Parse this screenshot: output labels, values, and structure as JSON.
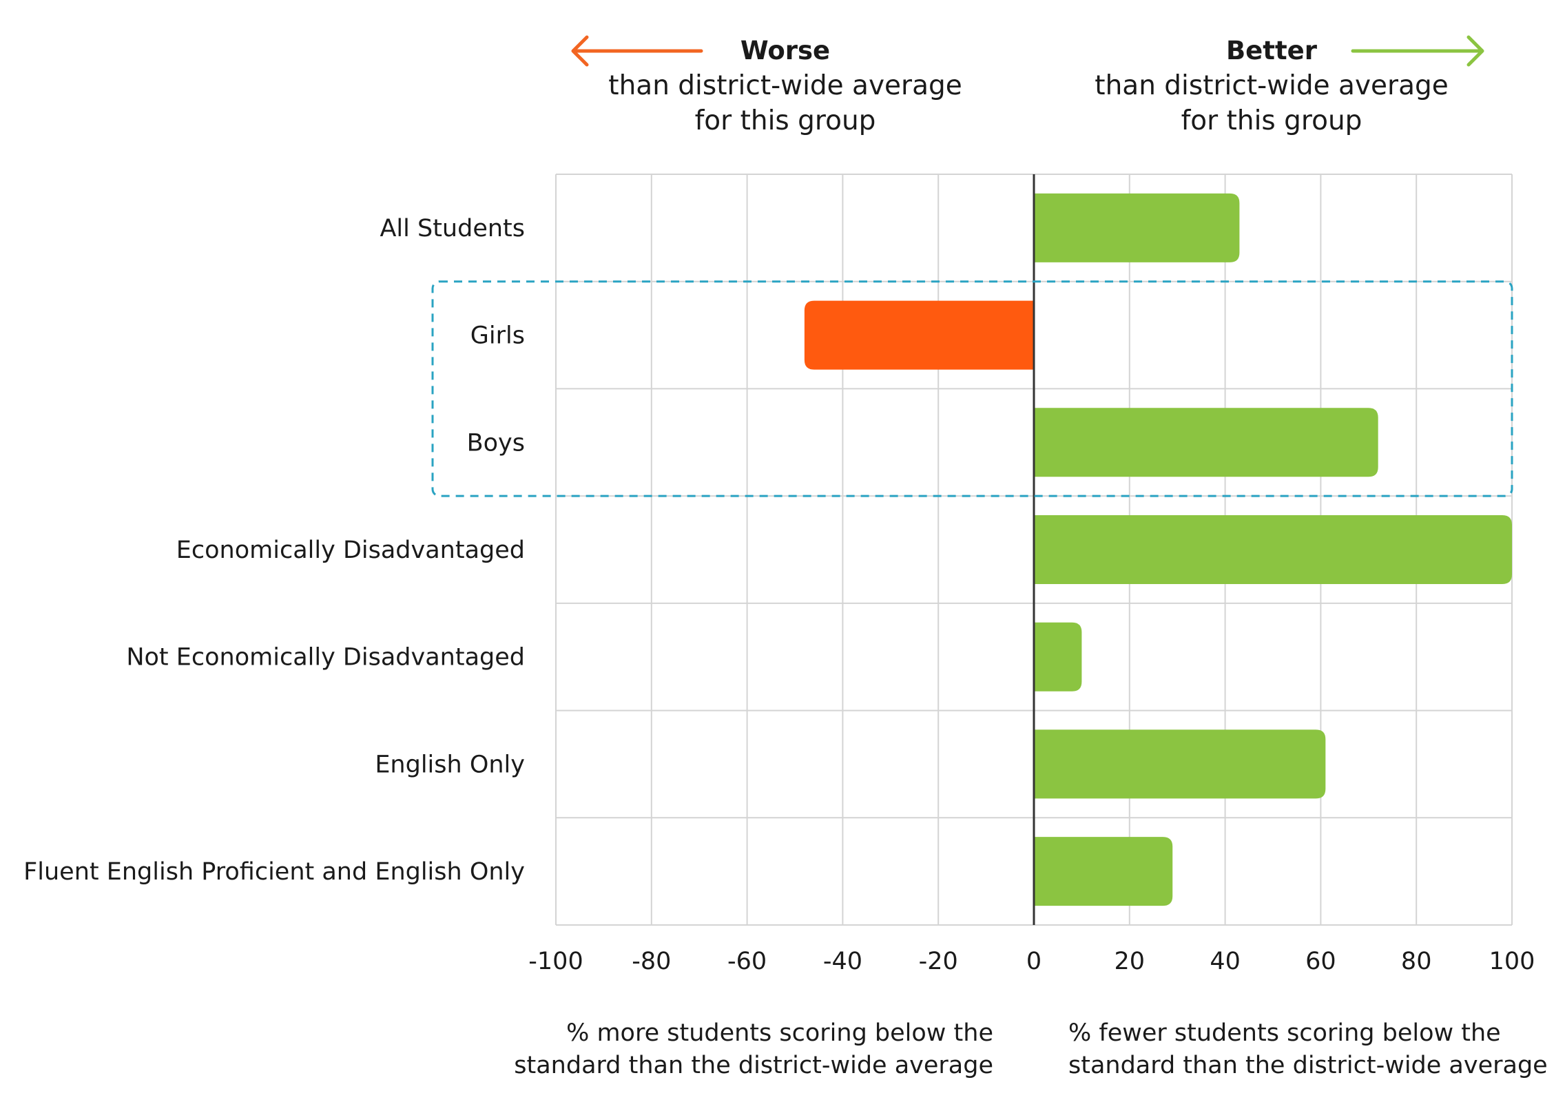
{
  "chart_data": {
    "type": "bar",
    "orientation": "horizontal",
    "categories": [
      "All Students",
      "Girls",
      "Boys",
      "Economically Disadvantaged",
      "Not Economically Disadvantaged",
      "English Only",
      "Fluent English Proficient and English Only"
    ],
    "values": [
      43,
      -48,
      72,
      100,
      10,
      61,
      29
    ],
    "xlim": [
      -100,
      100
    ],
    "x_ticks": [
      -100,
      -80,
      -60,
      -40,
      -20,
      0,
      20,
      40,
      60,
      80,
      100
    ],
    "x_tick_labels": [
      "-100",
      "-80",
      "-60",
      "-40",
      "-20",
      "0",
      "20",
      "40",
      "60",
      "80",
      "100"
    ],
    "grid": true,
    "highlight": {
      "categories": [
        "Girls",
        "Boys"
      ],
      "style": "dashed"
    },
    "negative_color": "#FF5A0F",
    "positive_color": "#8BC441",
    "highlight_color": "#2AA3C2",
    "worse_legend": {
      "title": "Worse",
      "line1": "than district-wide average",
      "line2": "for this group",
      "arrow_color": "#F26522"
    },
    "better_legend": {
      "title": "Better",
      "line1": "than district-wide average",
      "line2": "for this group",
      "arrow_color": "#8BC441"
    },
    "xlabel_left": {
      "line1": "% more students scoring below the",
      "line2": "standard than the district-wide average"
    },
    "xlabel_right": {
      "line1": "% fewer students scoring below the",
      "line2": "standard than the district-wide average"
    }
  }
}
